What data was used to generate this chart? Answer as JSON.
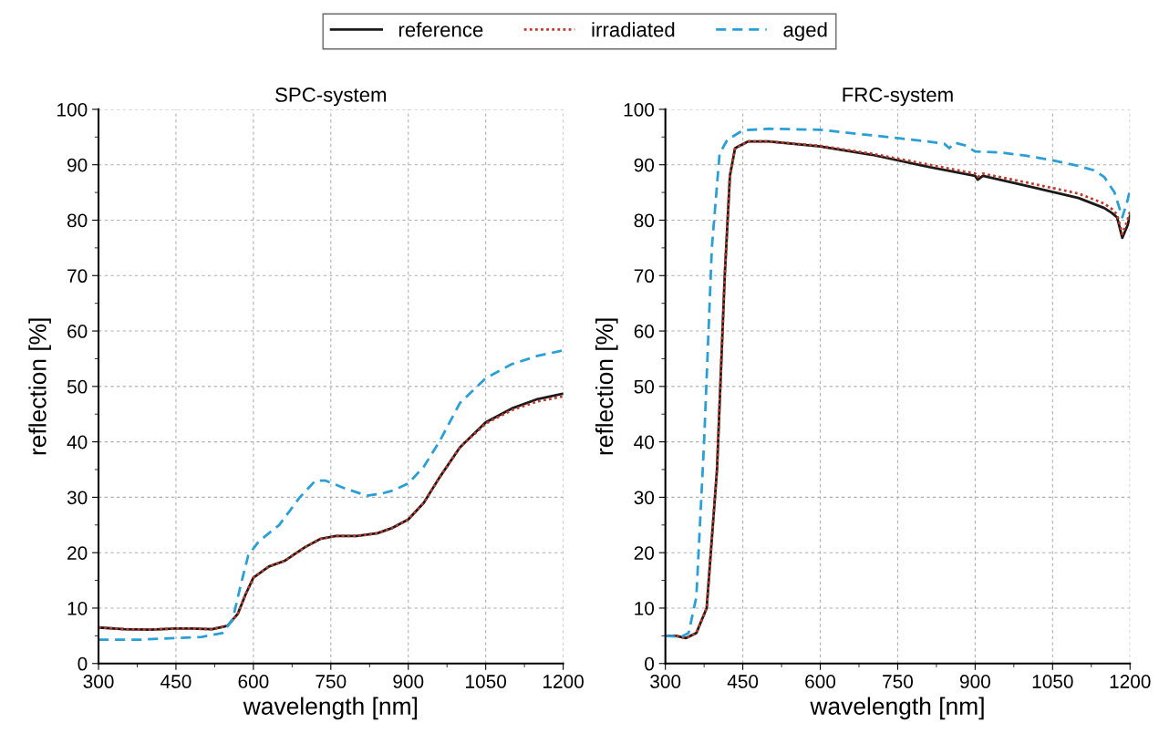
{
  "chart_data": [
    {
      "type": "line",
      "title": "SPC-system",
      "xlabel": "wavelength [nm]",
      "ylabel": "reflection [%]",
      "xlim": [
        300,
        1200
      ],
      "ylim": [
        0,
        100
      ],
      "xticks": [
        300,
        450,
        600,
        750,
        900,
        1050,
        1200
      ],
      "yticks": [
        0,
        10,
        20,
        30,
        40,
        50,
        60,
        70,
        80,
        90,
        100
      ],
      "grid": true,
      "legend": "top",
      "series": [
        {
          "name": "reference",
          "color": "#1a1a1a",
          "line_style": "solid",
          "x": [
            300,
            350,
            400,
            450,
            480,
            520,
            550,
            570,
            585,
            600,
            630,
            660,
            700,
            730,
            760,
            800,
            840,
            870,
            900,
            930,
            960,
            1000,
            1050,
            1100,
            1150,
            1200
          ],
          "values": [
            6.5,
            6.2,
            6.1,
            6.3,
            6.3,
            6.2,
            6.8,
            9,
            12.5,
            15.5,
            17.5,
            18.5,
            21,
            22.5,
            23,
            23,
            23.5,
            24.5,
            26,
            29,
            33.5,
            39,
            43.5,
            46,
            47.7,
            48.7
          ]
        },
        {
          "name": "irradiated",
          "color": "#c0392b",
          "line_style": "dotted",
          "x": [
            300,
            350,
            400,
            450,
            480,
            520,
            550,
            570,
            585,
            600,
            630,
            660,
            700,
            730,
            760,
            800,
            840,
            870,
            900,
            930,
            960,
            1000,
            1050,
            1100,
            1150,
            1200
          ],
          "values": [
            6.5,
            6.2,
            6.1,
            6.3,
            6.3,
            6.2,
            6.8,
            9,
            12.5,
            15.5,
            17.5,
            18.5,
            21,
            22.5,
            23,
            23,
            23.5,
            24.5,
            26,
            29,
            33.5,
            39,
            43.3,
            45.7,
            47.3,
            48.2
          ]
        },
        {
          "name": "aged",
          "color": "#2a9fd6",
          "line_style": "dashed",
          "x": [
            300,
            380,
            450,
            500,
            540,
            560,
            575,
            590,
            610,
            650,
            690,
            720,
            740,
            780,
            820,
            850,
            870,
            900,
            930,
            960,
            1000,
            1050,
            1100,
            1150,
            1200
          ],
          "values": [
            4.3,
            4.3,
            4.6,
            4.8,
            5.5,
            8,
            14,
            19.5,
            22,
            25,
            30,
            33,
            33,
            31.5,
            30.3,
            30.7,
            31.2,
            32.5,
            35.5,
            40,
            47,
            51.5,
            54,
            55.5,
            56.5
          ]
        }
      ]
    },
    {
      "type": "line",
      "title": "FRC-system",
      "xlabel": "wavelength [nm]",
      "ylabel": "reflection [%]",
      "xlim": [
        300,
        1200
      ],
      "ylim": [
        0,
        100
      ],
      "xticks": [
        300,
        450,
        600,
        750,
        900,
        1050,
        1200
      ],
      "yticks": [
        0,
        10,
        20,
        30,
        40,
        50,
        60,
        70,
        80,
        90,
        100
      ],
      "grid": true,
      "series": [
        {
          "color": "#1a1a1a",
          "line_style": "solid",
          "x": [
            300,
            320,
            340,
            360,
            380,
            400,
            415,
            425,
            435,
            460,
            500,
            600,
            700,
            800,
            900,
            905,
            915,
            1000,
            1100,
            1150,
            1165,
            1175,
            1185,
            1195,
            1200
          ],
          "values": [
            5,
            5,
            4.6,
            5.5,
            10,
            35,
            70,
            88,
            93,
            94.2,
            94.2,
            93.3,
            91.8,
            89.8,
            88,
            87.3,
            88,
            86.2,
            84,
            82.2,
            81.3,
            80.5,
            76.8,
            79,
            80.8
          ]
        },
        {
          "color": "#c0392b",
          "line_style": "dotted",
          "x": [
            300,
            320,
            340,
            360,
            380,
            400,
            415,
            425,
            435,
            460,
            500,
            600,
            700,
            800,
            900,
            905,
            915,
            1000,
            1100,
            1150,
            1165,
            1175,
            1185,
            1195,
            1200
          ],
          "values": [
            5,
            5,
            4.6,
            5.5,
            10,
            35,
            70,
            88,
            93,
            94.2,
            94.2,
            93.4,
            92,
            90.2,
            88.4,
            87.8,
            88.4,
            86.8,
            84.8,
            83,
            82,
            81,
            77.5,
            80,
            81.5
          ]
        },
        {
          "color": "#2a9fd6",
          "line_style": "dashed",
          "x": [
            300,
            330,
            345,
            360,
            375,
            390,
            405,
            420,
            450,
            500,
            600,
            700,
            800,
            840,
            850,
            860,
            880,
            900,
            950,
            1000,
            1050,
            1100,
            1130,
            1150,
            1170,
            1185,
            1195,
            1200
          ],
          "values": [
            5,
            4.8,
            5.5,
            12,
            40,
            75,
            92,
            94.5,
            96.2,
            96.5,
            96.3,
            95.3,
            94.3,
            93.8,
            93,
            94,
            93.5,
            92.4,
            92.2,
            91.6,
            90.8,
            89.8,
            89,
            87.8,
            85,
            80.5,
            83.5,
            85.5
          ]
        }
      ]
    }
  ]
}
